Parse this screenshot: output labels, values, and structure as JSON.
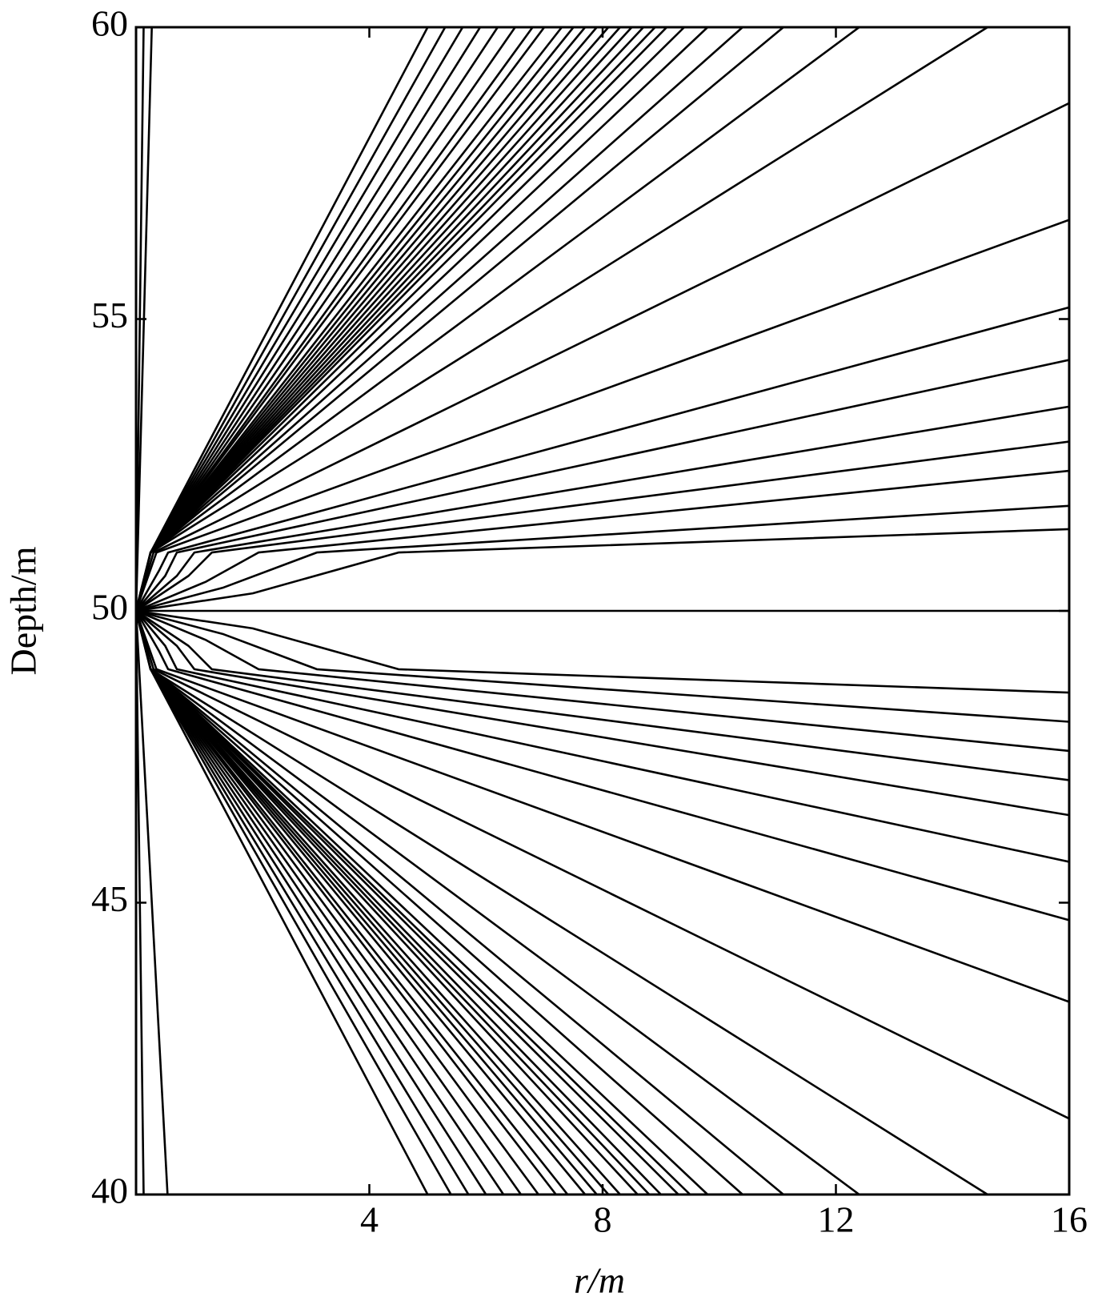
{
  "chart_data": {
    "type": "line",
    "xlabel": "r/m",
    "ylabel": "Depth/m",
    "color": "#000000",
    "xlim": [
      0,
      16
    ],
    "ylim": [
      40,
      60
    ],
    "xticks": [
      4,
      8,
      12,
      16
    ],
    "yticks": [
      40,
      45,
      50,
      55,
      60
    ],
    "series": [
      {
        "x": [
          0,
          2,
          4.5,
          16
        ],
        "y": [
          50,
          50.3,
          51,
          51.4
        ]
      },
      {
        "x": [
          0,
          1.5,
          3.1,
          16
        ],
        "y": [
          50,
          50.4,
          51,
          51.8
        ]
      },
      {
        "x": [
          0,
          1.2,
          2.1,
          16
        ],
        "y": [
          50,
          50.5,
          51,
          52.4
        ]
      },
      {
        "x": [
          0,
          0.9,
          1.3,
          16
        ],
        "y": [
          50,
          50.6,
          51,
          52.9
        ]
      },
      {
        "x": [
          0,
          0.7,
          1.0,
          16
        ],
        "y": [
          50,
          50.6,
          51,
          53.5
        ]
      },
      {
        "x": [
          0,
          0.5,
          0.7,
          16
        ],
        "y": [
          50,
          50.6,
          51,
          54.3
        ]
      },
      {
        "x": [
          0,
          0.4,
          0.55,
          16
        ],
        "y": [
          50,
          50.7,
          51,
          55.2
        ]
      },
      {
        "x": [
          0,
          0.35,
          16
        ],
        "y": [
          50,
          51,
          56.7
        ]
      },
      {
        "x": [
          0,
          0.3,
          16
        ],
        "y": [
          50,
          51,
          58.7
        ]
      },
      {
        "x": [
          0,
          0.25,
          14.6
        ],
        "y": [
          50,
          51,
          60
        ]
      },
      {
        "x": [
          0,
          0.25,
          12.4
        ],
        "y": [
          50,
          51,
          60
        ]
      },
      {
        "x": [
          0,
          0.25,
          11.1
        ],
        "y": [
          50,
          51,
          60
        ]
      },
      {
        "x": [
          0,
          0.25,
          10.4
        ],
        "y": [
          50,
          51,
          60
        ]
      },
      {
        "x": [
          0,
          0.25,
          9.8
        ],
        "y": [
          50,
          51,
          60
        ]
      },
      {
        "x": [
          0,
          0.25,
          9.4
        ],
        "y": [
          50,
          51,
          60
        ]
      },
      {
        "x": [
          0,
          0.25,
          9.1
        ],
        "y": [
          50,
          51,
          60
        ]
      },
      {
        "x": [
          0,
          0.25,
          8.9
        ],
        "y": [
          50,
          51,
          60
        ]
      },
      {
        "x": [
          0,
          0.25,
          8.7
        ],
        "y": [
          50,
          51,
          60
        ]
      },
      {
        "x": [
          0,
          0.25,
          8.5
        ],
        "y": [
          50,
          51,
          60
        ]
      },
      {
        "x": [
          0,
          0.25,
          8.3
        ],
        "y": [
          50,
          51,
          60
        ]
      },
      {
        "x": [
          0,
          0.25,
          8.1
        ],
        "y": [
          50,
          51,
          60
        ]
      },
      {
        "x": [
          0,
          0.25,
          7.9
        ],
        "y": [
          50,
          51,
          60
        ]
      },
      {
        "x": [
          0,
          0.25,
          7.7
        ],
        "y": [
          50,
          51,
          60
        ]
      },
      {
        "x": [
          0,
          0.25,
          7.5
        ],
        "y": [
          50,
          51,
          60
        ]
      },
      {
        "x": [
          0,
          0.25,
          7.3
        ],
        "y": [
          50,
          51,
          60
        ]
      },
      {
        "x": [
          0,
          0.25,
          7.0
        ],
        "y": [
          50,
          51,
          60
        ]
      },
      {
        "x": [
          0,
          0.25,
          6.8
        ],
        "y": [
          50,
          51,
          60
        ]
      },
      {
        "x": [
          0,
          0.25,
          6.5
        ],
        "y": [
          50,
          51,
          60
        ]
      },
      {
        "x": [
          0,
          0.25,
          6.2
        ],
        "y": [
          50,
          51,
          60
        ]
      },
      {
        "x": [
          0,
          0.25,
          5.9
        ],
        "y": [
          50,
          51,
          60
        ]
      },
      {
        "x": [
          0,
          0.25,
          5.6
        ],
        "y": [
          50,
          51,
          60
        ]
      },
      {
        "x": [
          0,
          0.25,
          5.3
        ],
        "y": [
          50,
          51,
          60
        ]
      },
      {
        "x": [
          0,
          0.25,
          5.0
        ],
        "y": [
          50,
          51,
          60
        ]
      },
      {
        "x": [
          0,
          2,
          4.5,
          16
        ],
        "y": [
          50,
          49.7,
          49,
          48.6
        ]
      },
      {
        "x": [
          0,
          1.5,
          3.1,
          16
        ],
        "y": [
          50,
          49.6,
          49,
          48.1
        ]
      },
      {
        "x": [
          0,
          1.2,
          2.1,
          16
        ],
        "y": [
          50,
          49.5,
          49,
          47.6
        ]
      },
      {
        "x": [
          0,
          0.9,
          1.3,
          16
        ],
        "y": [
          50,
          49.4,
          49,
          47.1
        ]
      },
      {
        "x": [
          0,
          0.7,
          1.0,
          16
        ],
        "y": [
          50,
          49.4,
          49,
          46.5
        ]
      },
      {
        "x": [
          0,
          0.5,
          0.7,
          16
        ],
        "y": [
          50,
          49.4,
          49,
          45.7
        ]
      },
      {
        "x": [
          0,
          0.4,
          0.55,
          16
        ],
        "y": [
          50,
          49.3,
          49,
          44.7
        ]
      },
      {
        "x": [
          0,
          0.35,
          16
        ],
        "y": [
          50,
          49,
          43.3
        ]
      },
      {
        "x": [
          0,
          0.3,
          16
        ],
        "y": [
          50,
          49,
          41.3
        ]
      },
      {
        "x": [
          0,
          0.25,
          14.6
        ],
        "y": [
          50,
          49,
          40
        ]
      },
      {
        "x": [
          0,
          0.25,
          12.4
        ],
        "y": [
          50,
          49,
          40
        ]
      },
      {
        "x": [
          0,
          0.25,
          11.1
        ],
        "y": [
          50,
          49,
          40
        ]
      },
      {
        "x": [
          0,
          0.25,
          10.4
        ],
        "y": [
          50,
          49,
          40
        ]
      },
      {
        "x": [
          0,
          0.25,
          9.8
        ],
        "y": [
          50,
          49,
          40
        ]
      },
      {
        "x": [
          0,
          0.25,
          9.5
        ],
        "y": [
          50,
          49,
          40
        ]
      },
      {
        "x": [
          0,
          0.25,
          9.3
        ],
        "y": [
          50,
          49,
          40
        ]
      },
      {
        "x": [
          0,
          0.25,
          9.0
        ],
        "y": [
          50,
          49,
          40
        ]
      },
      {
        "x": [
          0,
          0.25,
          8.8
        ],
        "y": [
          50,
          49,
          40
        ]
      },
      {
        "x": [
          0,
          0.25,
          8.6
        ],
        "y": [
          50,
          49,
          40
        ]
      },
      {
        "x": [
          0,
          0.25,
          8.3
        ],
        "y": [
          50,
          49,
          40
        ]
      },
      {
        "x": [
          0,
          0.25,
          8.1
        ],
        "y": [
          50,
          49,
          40
        ]
      },
      {
        "x": [
          0,
          0.25,
          7.9
        ],
        "y": [
          50,
          49,
          40
        ]
      },
      {
        "x": [
          0,
          0.25,
          7.7
        ],
        "y": [
          50,
          49,
          40
        ]
      },
      {
        "x": [
          0,
          0.25,
          7.4
        ],
        "y": [
          50,
          49,
          40
        ]
      },
      {
        "x": [
          0,
          0.25,
          7.2
        ],
        "y": [
          50,
          49,
          40
        ]
      },
      {
        "x": [
          0,
          0.25,
          6.9
        ],
        "y": [
          50,
          49,
          40
        ]
      },
      {
        "x": [
          0,
          0.25,
          6.6
        ],
        "y": [
          50,
          49,
          40
        ]
      },
      {
        "x": [
          0,
          0.25,
          6.3
        ],
        "y": [
          50,
          49,
          40
        ]
      },
      {
        "x": [
          0,
          0.25,
          6.0
        ],
        "y": [
          50,
          49,
          40
        ]
      },
      {
        "x": [
          0,
          0.25,
          5.7
        ],
        "y": [
          50,
          49,
          40
        ]
      },
      {
        "x": [
          0,
          0.25,
          5.4
        ],
        "y": [
          50,
          49,
          40
        ]
      },
      {
        "x": [
          0,
          0.25,
          5.0
        ],
        "y": [
          50,
          49,
          40
        ]
      },
      {
        "x": [
          0,
          16
        ],
        "y": [
          50,
          50
        ]
      },
      {
        "x": [
          0,
          0.13
        ],
        "y": [
          50,
          60
        ]
      },
      {
        "x": [
          0,
          0.27
        ],
        "y": [
          50,
          60
        ]
      },
      {
        "x": [
          0,
          0.13
        ],
        "y": [
          50,
          40
        ]
      },
      {
        "x": [
          0,
          0.54
        ],
        "y": [
          50,
          40
        ]
      }
    ]
  }
}
